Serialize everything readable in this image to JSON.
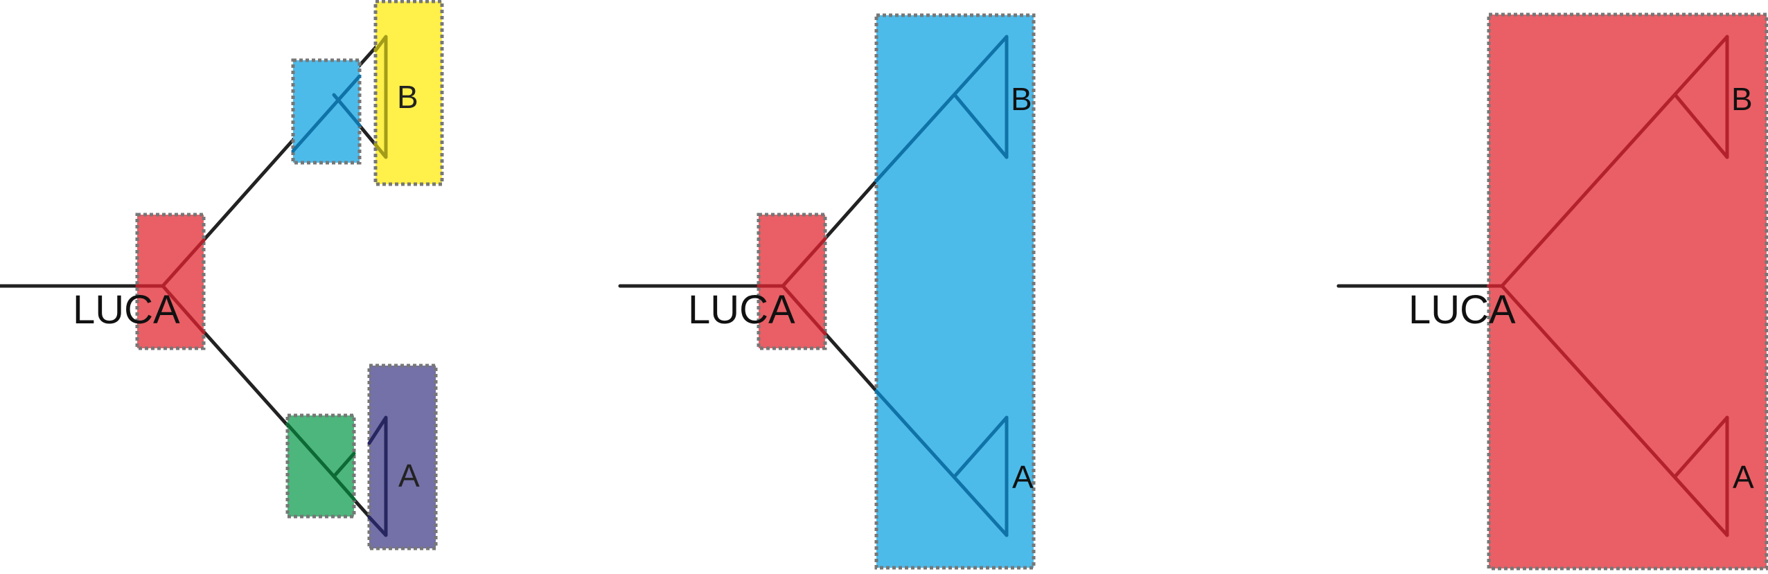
{
  "colors": {
    "red": "#e95f65",
    "blue": "#4dbbea",
    "yellow": "#fff04a",
    "green": "#4cb67c",
    "purple": "#7470a8",
    "box_border": "#777777",
    "line_black": "#222222",
    "line_red": "#b3222c",
    "line_blue": "#0f73a8",
    "line_green": "#0d6a34",
    "line_purple": "#28265f",
    "line_yellow": "#a39c18"
  },
  "panels": [
    {
      "root_label": "LUCA",
      "top_leaf": "B",
      "bottom_leaf": "A"
    },
    {
      "root_label": "LUCA",
      "top_leaf": "B",
      "bottom_leaf": "A"
    },
    {
      "root_label": "LUCA",
      "top_leaf": "B",
      "bottom_leaf": "A"
    }
  ]
}
